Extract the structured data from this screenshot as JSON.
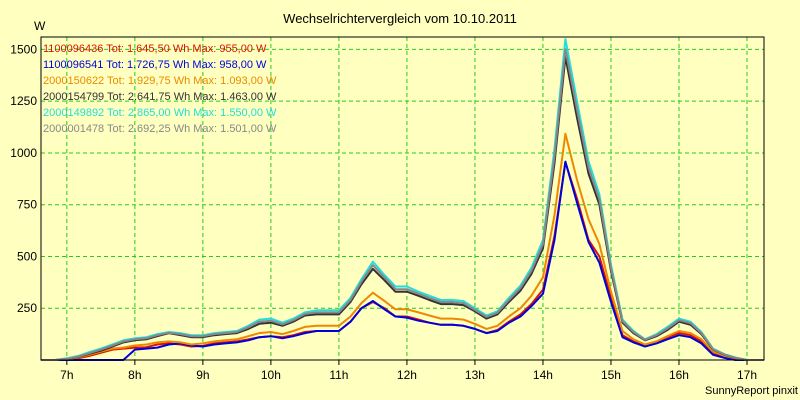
{
  "chart_data": {
    "type": "line",
    "title": "Wechselrichtervergleich vom 10.10.2011",
    "ylabel": "W",
    "footer": "SunnyReport pinxit",
    "ylim": [
      0,
      1560
    ],
    "xlim": [
      6.62,
      17.25
    ],
    "grid": true,
    "legend_position": "top-left",
    "x_ticks": [
      {
        "value": 7,
        "label": "7h"
      },
      {
        "value": 8,
        "label": "8h"
      },
      {
        "value": 9,
        "label": "9h"
      },
      {
        "value": 10,
        "label": "10h"
      },
      {
        "value": 11,
        "label": "11h"
      },
      {
        "value": 12,
        "label": "12h"
      },
      {
        "value": 13,
        "label": "13h"
      },
      {
        "value": 14,
        "label": "14h"
      },
      {
        "value": 15,
        "label": "15h"
      },
      {
        "value": 16,
        "label": "16h"
      },
      {
        "value": 17,
        "label": "17h"
      }
    ],
    "y_ticks": [
      {
        "value": 250,
        "label": "250"
      },
      {
        "value": 500,
        "label": "500"
      },
      {
        "value": 750,
        "label": "750"
      },
      {
        "value": 1000,
        "label": "1000"
      },
      {
        "value": 1250,
        "label": "1250"
      },
      {
        "value": 1500,
        "label": "1500"
      }
    ],
    "x": [
      6.62,
      6.83,
      7.0,
      7.17,
      7.33,
      7.5,
      7.67,
      7.83,
      8.0,
      8.17,
      8.33,
      8.5,
      8.67,
      8.83,
      9.0,
      9.17,
      9.33,
      9.5,
      9.67,
      9.83,
      10.0,
      10.17,
      10.33,
      10.5,
      10.67,
      10.83,
      11.0,
      11.17,
      11.33,
      11.5,
      11.67,
      11.83,
      12.0,
      12.17,
      12.33,
      12.5,
      12.67,
      12.83,
      13.0,
      13.17,
      13.33,
      13.5,
      13.67,
      13.83,
      14.0,
      14.17,
      14.33,
      14.5,
      14.67,
      14.83,
      15.0,
      15.17,
      15.33,
      15.5,
      15.67,
      15.83,
      16.0,
      16.17,
      16.33,
      16.5,
      16.67,
      16.83,
      17.0,
      17.25
    ],
    "series": [
      {
        "name": "1100096436 Tot: 1.645,50 Wh Max: 955,00 W",
        "color": "#dd1100",
        "values": [
          0,
          0,
          2,
          8,
          20,
          35,
          50,
          55,
          60,
          62,
          75,
          80,
          75,
          65,
          68,
          80,
          85,
          90,
          100,
          110,
          115,
          110,
          120,
          135,
          140,
          140,
          140,
          185,
          250,
          280,
          250,
          210,
          210,
          195,
          180,
          170,
          170,
          165,
          150,
          130,
          145,
          185,
          220,
          270,
          340,
          600,
          955,
          780,
          580,
          500,
          300,
          120,
          90,
          70,
          85,
          110,
          130,
          120,
          90,
          30,
          15,
          5,
          0,
          0
        ]
      },
      {
        "name": "1100096541 Tot: 1.726,75 Wh Max: 958,00 W",
        "color": "#0000dd",
        "values": [
          0,
          0,
          0,
          0,
          0,
          0,
          0,
          0,
          50,
          55,
          60,
          75,
          80,
          70,
          65,
          75,
          80,
          85,
          95,
          110,
          115,
          105,
          115,
          130,
          140,
          140,
          140,
          185,
          250,
          285,
          245,
          210,
          205,
          190,
          180,
          170,
          170,
          165,
          150,
          130,
          140,
          180,
          210,
          260,
          320,
          580,
          958,
          760,
          570,
          470,
          280,
          110,
          85,
          65,
          80,
          100,
          120,
          110,
          80,
          25,
          10,
          0,
          0,
          0
        ]
      },
      {
        "name": "2000150622 Tot: 1.929,75 Wh Max: 1.093,00 W",
        "color": "#ee8800",
        "values": [
          0,
          0,
          5,
          12,
          25,
          40,
          55,
          60,
          70,
          75,
          85,
          90,
          85,
          75,
          80,
          90,
          95,
          100,
          115,
          130,
          135,
          125,
          140,
          160,
          165,
          165,
          165,
          210,
          275,
          325,
          285,
          245,
          245,
          230,
          215,
          200,
          200,
          195,
          175,
          150,
          165,
          210,
          250,
          310,
          400,
          700,
          1093,
          870,
          680,
          560,
          330,
          140,
          100,
          75,
          90,
          115,
          140,
          130,
          100,
          40,
          20,
          8,
          0,
          0
        ]
      },
      {
        "name": "2000154799 Tot: 2.641,75 Wh Max: 1.463,00 W",
        "color": "#333333",
        "values": [
          0,
          0,
          5,
          15,
          30,
          45,
          65,
          85,
          95,
          100,
          115,
          130,
          120,
          110,
          110,
          120,
          125,
          130,
          150,
          175,
          180,
          165,
          185,
          215,
          220,
          220,
          220,
          280,
          365,
          440,
          385,
          330,
          330,
          310,
          290,
          270,
          270,
          265,
          235,
          200,
          220,
          280,
          335,
          415,
          540,
          950,
          1463,
          1170,
          900,
          750,
          430,
          180,
          130,
          95,
          115,
          145,
          185,
          170,
          125,
          50,
          25,
          10,
          0,
          0
        ]
      },
      {
        "name": "2000149892 Tot: 2.865,00 Wh Max: 1.550,00 W",
        "color": "#22dddd",
        "values": [
          0,
          0,
          8,
          20,
          38,
          55,
          75,
          95,
          105,
          110,
          125,
          135,
          130,
          120,
          120,
          130,
          135,
          140,
          165,
          195,
          200,
          180,
          200,
          230,
          240,
          240,
          240,
          300,
          390,
          475,
          410,
          355,
          355,
          330,
          310,
          290,
          290,
          285,
          250,
          215,
          235,
          300,
          360,
          445,
          580,
          1020,
          1550,
          1250,
          960,
          800,
          460,
          195,
          140,
          100,
          125,
          160,
          200,
          185,
          135,
          55,
          28,
          12,
          0,
          0
        ]
      },
      {
        "name": "2000001478 Tot: 2.692,25 Wh Max: 1.501,00 W",
        "color": "#888888",
        "values": [
          0,
          0,
          6,
          17,
          33,
          50,
          70,
          90,
          100,
          105,
          120,
          132,
          125,
          115,
          115,
          125,
          130,
          135,
          158,
          185,
          190,
          172,
          192,
          222,
          230,
          230,
          230,
          290,
          378,
          458,
          398,
          342,
          342,
          320,
          300,
          280,
          280,
          275,
          242,
          208,
          228,
          290,
          348,
          430,
          560,
          985,
          1501,
          1210,
          930,
          775,
          445,
          188,
          135,
          98,
          120,
          152,
          192,
          178,
          130,
          52,
          26,
          11,
          0,
          0
        ]
      }
    ]
  }
}
